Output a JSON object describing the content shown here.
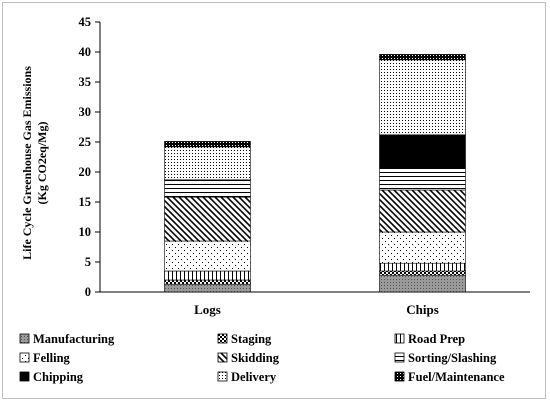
{
  "chart_data": {
    "type": "bar",
    "stacked": true,
    "categories": [
      "Logs",
      "Chips"
    ],
    "ylabel_lines": [
      "Life Cycle Greenhouse Gas Emissions",
      "(Kg CO2eq/Mg)"
    ],
    "ylim": [
      0,
      45
    ],
    "yticks": [
      0,
      5,
      10,
      15,
      20,
      25,
      30,
      35,
      40,
      45
    ],
    "grid": false,
    "legend_position": "bottom",
    "series": [
      {
        "name": "Manufacturing",
        "pattern": "dots-gray",
        "values": [
          1.3,
          2.8
        ]
      },
      {
        "name": "Staging",
        "pattern": "checker",
        "values": [
          0.7,
          0.7
        ]
      },
      {
        "name": "Road Prep",
        "pattern": "vertical-lines",
        "values": [
          1.5,
          1.3
        ]
      },
      {
        "name": "Felling",
        "pattern": "sparse-dots",
        "values": [
          5.0,
          5.2
        ]
      },
      {
        "name": "Skidding",
        "pattern": "diagonal-lines",
        "values": [
          7.3,
          7.0
        ]
      },
      {
        "name": "Sorting/Slashing",
        "pattern": "horizontal-lines",
        "values": [
          2.9,
          3.7
        ]
      },
      {
        "name": "Chipping",
        "pattern": "solid-black",
        "values": [
          0.0,
          5.5
        ]
      },
      {
        "name": "Delivery",
        "pattern": "dense-dots",
        "values": [
          5.5,
          12.5
        ]
      },
      {
        "name": "Fuel/Maintenance",
        "pattern": "dark-dots",
        "values": [
          0.9,
          0.9
        ]
      }
    ]
  }
}
